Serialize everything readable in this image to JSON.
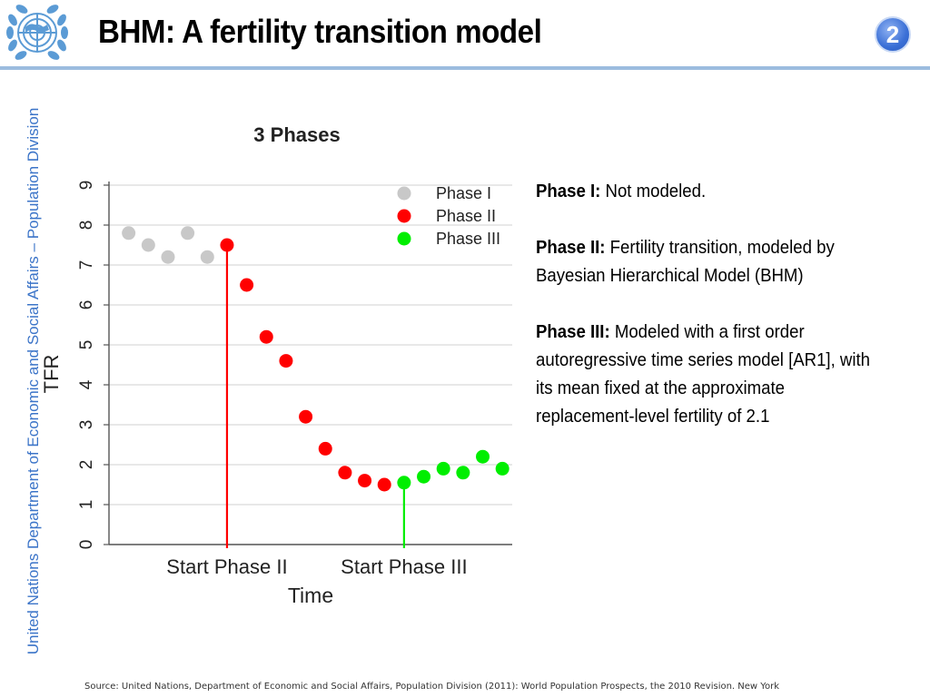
{
  "slide": {
    "title": "BHM: A fertility transition model",
    "page_number": "2",
    "side_text": "United Nations Department of Economic and Social Affairs – Population Division",
    "source": "Source: United Nations, Department of Economic and Social Affairs, Population Division (2011): World Population Prospects, the 2010 Revision. New York"
  },
  "description": [
    {
      "heading": "Phase I:",
      "text": "Not modeled."
    },
    {
      "heading": "Phase II:",
      "text": "Fertility transition, modeled by Bayesian Hierarchical Model (BHM)"
    },
    {
      "heading": "Phase III:",
      "text": "Modeled with a first order autoregressive time series model [AR1], with its mean fixed at the approximate replacement-level fertility of 2.1"
    }
  ],
  "chart_data": {
    "type": "scatter",
    "title": "3 Phases",
    "xlabel": "Time",
    "ylabel": "TFR",
    "ylim": [
      0,
      9
    ],
    "yticks": [
      0,
      1,
      2,
      3,
      4,
      5,
      6,
      7,
      8,
      9
    ],
    "grid": true,
    "legend_position": "top-right",
    "x_tick_labels": [
      {
        "x": 6,
        "label": "Start Phase II"
      },
      {
        "x": 15,
        "label": "Start Phase III"
      }
    ],
    "series": [
      {
        "name": "Phase I",
        "color": "#c8c8c8",
        "x": [
          1,
          2,
          3,
          4,
          5
        ],
        "y": [
          7.8,
          7.5,
          7.2,
          7.8,
          7.2
        ]
      },
      {
        "name": "Phase II",
        "color": "#ff0000",
        "x": [
          6,
          7,
          8,
          9,
          10,
          11,
          12,
          13,
          14
        ],
        "y": [
          7.5,
          6.5,
          5.2,
          4.6,
          3.2,
          2.4,
          1.8,
          1.6,
          1.5
        ]
      },
      {
        "name": "Phase III",
        "color": "#00ee00",
        "x": [
          15,
          16,
          17,
          18,
          19,
          20
        ],
        "y": [
          1.55,
          1.7,
          1.9,
          1.8,
          2.2,
          1.9
        ]
      }
    ],
    "phase_markers": [
      {
        "x": 6,
        "y": 7.5,
        "color": "#ff0000"
      },
      {
        "x": 15,
        "y": 1.55,
        "color": "#00ee00"
      }
    ]
  }
}
